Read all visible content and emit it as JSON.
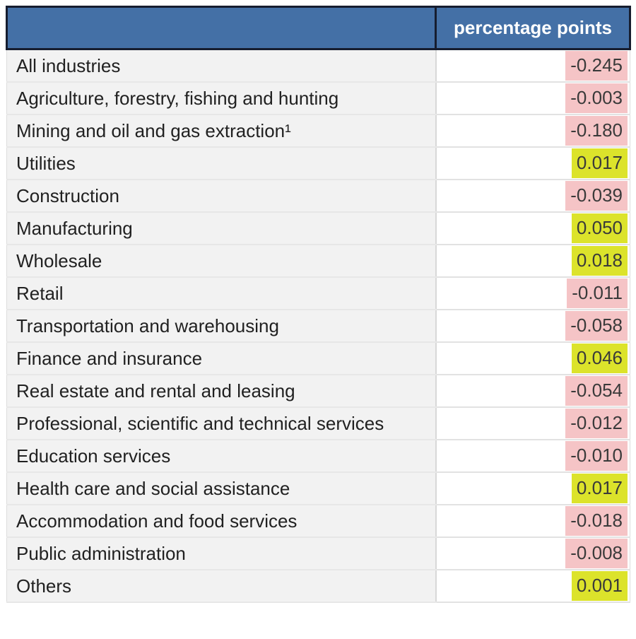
{
  "header": {
    "industry_col": "",
    "value_col": "percentage points"
  },
  "rows": [
    {
      "label": "All industries",
      "value": "-0.245",
      "sign": "negative"
    },
    {
      "label": "Agriculture, forestry, fishing and hunting",
      "value": "-0.003",
      "sign": "negative"
    },
    {
      "label": "Mining and oil and gas extraction¹",
      "value": "-0.180",
      "sign": "negative"
    },
    {
      "label": "Utilities",
      "value": "0.017",
      "sign": "positive"
    },
    {
      "label": "Construction",
      "value": "-0.039",
      "sign": "negative"
    },
    {
      "label": "Manufacturing",
      "value": "0.050",
      "sign": "positive"
    },
    {
      "label": "Wholesale",
      "value": "0.018",
      "sign": "positive"
    },
    {
      "label": "Retail",
      "value": "-0.011",
      "sign": "negative"
    },
    {
      "label": "Transportation and warehousing",
      "value": "-0.058",
      "sign": "negative"
    },
    {
      "label": "Finance and insurance",
      "value": "0.046",
      "sign": "positive"
    },
    {
      "label": "Real estate and rental and leasing",
      "value": "-0.054",
      "sign": "negative"
    },
    {
      "label": "Professional, scientific and technical services",
      "value": "-0.012",
      "sign": "negative"
    },
    {
      "label": "Education services",
      "value": "-0.010",
      "sign": "negative"
    },
    {
      "label": "Health care and social assistance",
      "value": "0.017",
      "sign": "positive"
    },
    {
      "label": "Accommodation and food services",
      "value": "-0.018",
      "sign": "negative"
    },
    {
      "label": "Public administration",
      "value": "-0.008",
      "sign": "negative"
    },
    {
      "label": "Others",
      "value": "0.001",
      "sign": "positive"
    }
  ],
  "colors": {
    "header_bg": "#4470a6",
    "header_border": "#161d2f",
    "negative_highlight": "#f5c4c6",
    "positive_highlight": "#dce32b",
    "label_column_bg": "#f2f2f2"
  },
  "chart_data": {
    "type": "table",
    "title": "",
    "columns": [
      "industry",
      "percentage points"
    ],
    "categories": [
      "All industries",
      "Agriculture, forestry, fishing and hunting",
      "Mining and oil and gas extraction¹",
      "Utilities",
      "Construction",
      "Manufacturing",
      "Wholesale",
      "Retail",
      "Transportation and warehousing",
      "Finance and insurance",
      "Real estate and rental and leasing",
      "Professional, scientific and technical services",
      "Education services",
      "Health care and social assistance",
      "Accommodation and food services",
      "Public administration",
      "Others"
    ],
    "values": [
      -0.245,
      -0.003,
      -0.18,
      0.017,
      -0.039,
      0.05,
      0.018,
      -0.011,
      -0.058,
      0.046,
      -0.054,
      -0.012,
      -0.01,
      0.017,
      -0.018,
      -0.008,
      0.001
    ],
    "legend": "negative values highlighted pink, positive values highlighted yellow-green"
  }
}
